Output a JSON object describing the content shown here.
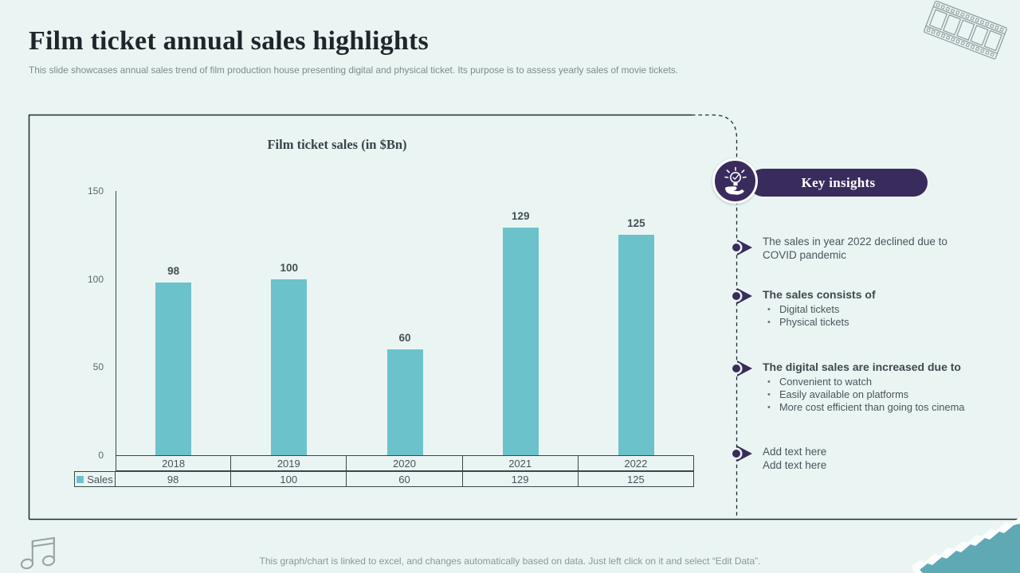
{
  "slide": {
    "title": "Film ticket annual sales highlights",
    "subtitle": "This slide showcases annual sales trend of film production house presenting digital and physical ticket. Its purpose is to assess yearly sales of movie tickets.",
    "footer": "This graph/chart is linked to excel, and changes automatically based on data. Just left click on it and select “Edit Data”."
  },
  "chart_data": {
    "type": "bar",
    "title": "Film ticket sales (in $Bn)",
    "categories": [
      "2018",
      "2019",
      "2020",
      "2021",
      "2022"
    ],
    "series": [
      {
        "name": "Sales",
        "values": [
          98,
          100,
          60,
          129,
          125
        ]
      }
    ],
    "xlabel": "",
    "ylabel": "",
    "ylim": [
      0,
      150
    ],
    "yticks": [
      0,
      50,
      100,
      150
    ],
    "grid": false,
    "legend_position": "data-table-left",
    "data_table_shown": true,
    "bar_color": "#6CC2CB"
  },
  "key_insights": {
    "header": "Key insights",
    "items": [
      {
        "lines": [
          "The sales in year 2022 declined due to COVID pandemic"
        ],
        "bold": false,
        "sub_items": []
      },
      {
        "lines": [
          "The sales consists of"
        ],
        "bold": true,
        "sub_items": [
          "Digital tickets",
          "Physical tickets"
        ]
      },
      {
        "lines": [
          "The digital sales are increased due to"
        ],
        "bold": true,
        "sub_items": [
          "Convenient to watch",
          "Easily available on platforms",
          "More cost efficient than going tos cinema"
        ]
      },
      {
        "lines": [
          "Add text here",
          "Add text here"
        ],
        "bold": false,
        "sub_items": []
      }
    ]
  },
  "icons": {
    "top_right": "film-strip-icon",
    "bottom_left": "music-notes-icon",
    "insights": "idea-bulb-hand-icon"
  },
  "colors": {
    "background": "#EAF5F3",
    "bar": "#6CC2CB",
    "accent_purple": "#3A2B5D",
    "torn_corner_teal": "#5FA9B5",
    "frame_line": "#1D2B33"
  }
}
